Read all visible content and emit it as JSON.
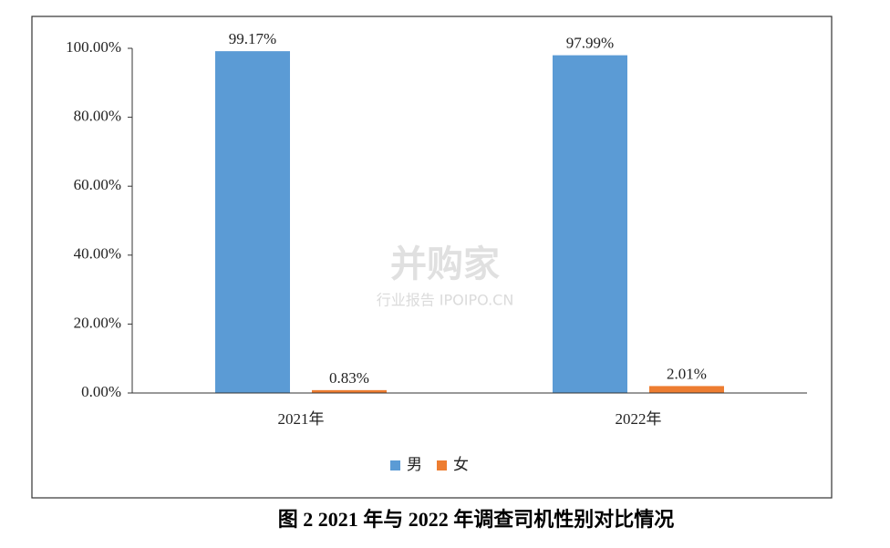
{
  "chart_data": {
    "type": "bar",
    "caption": "图 2 2021 年与 2022 年调查司机性别对比情况",
    "watermark": "并购家",
    "watermark_sub": "行业报告 IPOIPO.CN",
    "categories": [
      "2021年",
      "2022年"
    ],
    "series": [
      {
        "name": "男",
        "color": "#5b9bd5",
        "values": [
          99.17,
          97.99
        ],
        "value_labels": [
          "99.17%",
          "97.99%"
        ]
      },
      {
        "name": "女",
        "color": "#ed7d31",
        "values": [
          0.83,
          2.01
        ],
        "value_labels": [
          "0.83%",
          "2.01%"
        ]
      }
    ],
    "ylim": [
      0,
      100
    ],
    "yticks": [
      {
        "value": 0,
        "label": "0.00%"
      },
      {
        "value": 20,
        "label": "20.00%"
      },
      {
        "value": 40,
        "label": "40.00%"
      },
      {
        "value": 60,
        "label": "60.00%"
      },
      {
        "value": 80,
        "label": "80.00%"
      },
      {
        "value": 100,
        "label": "100.00%"
      }
    ],
    "legend": "bottom"
  }
}
